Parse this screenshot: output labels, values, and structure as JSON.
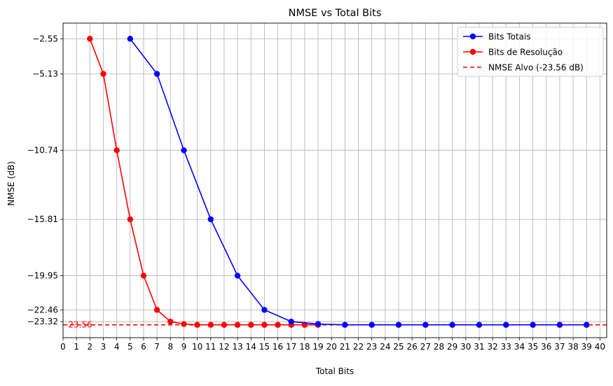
{
  "chart_data": {
    "type": "line",
    "title": "NMSE vs Total Bits",
    "xlabel": "Total Bits",
    "ylabel": "NMSE (dB)",
    "xlim": [
      0,
      40.5
    ],
    "ylim": [
      -24.5,
      -1.4
    ],
    "x_ticks": [
      "0",
      "1",
      "2",
      "3",
      "4",
      "5",
      "6",
      "7",
      "8",
      "9",
      "10",
      "11",
      "12",
      "13",
      "14",
      "15",
      "16",
      "17",
      "18",
      "19",
      "20",
      "21",
      "22",
      "23",
      "24",
      "25",
      "26",
      "27",
      "28",
      "29",
      "30",
      "31",
      "32",
      "33",
      "34",
      "35",
      "36",
      "37",
      "38",
      "39",
      "40"
    ],
    "y_ticks": [
      -2.55,
      -5.13,
      -10.74,
      -15.81,
      -19.95,
      -22.46,
      -23.32
    ],
    "y_tick_labels": [
      "−2.55",
      "−5.13",
      "−10.74",
      "−15.81",
      "−19.95",
      "−22.46",
      "−23.32"
    ],
    "grid": true,
    "legend_position": "top-right",
    "series": [
      {
        "name": "Bits Totais",
        "color": "#0000ff",
        "marker": "circle",
        "x": [
          5,
          7,
          9,
          11,
          13,
          15,
          17,
          19,
          21,
          23,
          25,
          27,
          29,
          31,
          33,
          35,
          37,
          39
        ],
        "y": [
          -2.55,
          -5.13,
          -10.74,
          -15.81,
          -19.95,
          -22.46,
          -23.32,
          -23.5,
          -23.56,
          -23.56,
          -23.56,
          -23.56,
          -23.56,
          -23.56,
          -23.56,
          -23.56,
          -23.56,
          -23.56
        ]
      },
      {
        "name": "Bits de Resolução",
        "color": "#ff0000",
        "marker": "circle",
        "x": [
          2,
          3,
          4,
          5,
          6,
          7,
          8,
          9,
          10,
          11,
          12,
          13,
          14,
          15,
          16,
          17,
          18,
          19
        ],
        "y": [
          -2.55,
          -5.13,
          -10.74,
          -15.81,
          -19.95,
          -22.46,
          -23.32,
          -23.5,
          -23.56,
          -23.56,
          -23.56,
          -23.56,
          -23.56,
          -23.56,
          -23.56,
          -23.56,
          -23.56,
          -23.56
        ]
      }
    ],
    "target_line": {
      "name": "NMSE Alvo (-23.56 dB)",
      "value": -23.56,
      "label": "-23.56",
      "color": "#ff0000",
      "style": "dashed"
    }
  }
}
